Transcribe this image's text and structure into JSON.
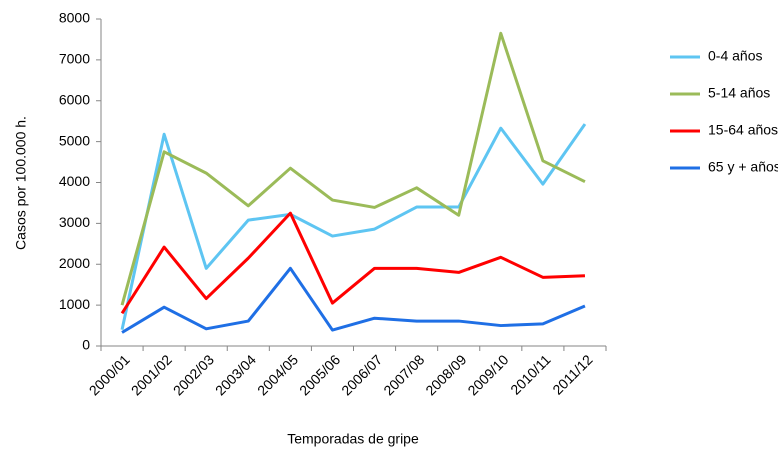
{
  "chart_data": {
    "type": "line",
    "x_label": "Temporadas de gripe",
    "y_label": "Casos por 100.000 h.",
    "categories": [
      "2000/01",
      "2001/02",
      "2002/03",
      "2003/04",
      "2004/05",
      "2005/06",
      "2006/07",
      "2007/08",
      "2008/09",
      "2009/10",
      "2010/11",
      "2011/12"
    ],
    "series": [
      {
        "name": "0-4 años",
        "color": "#5ec5f2",
        "values": [
          400,
          5180,
          1900,
          3080,
          3220,
          2690,
          2860,
          3400,
          3400,
          5330,
          3960,
          5430
        ]
      },
      {
        "name": "5-14 años",
        "color": "#9bbb59",
        "values": [
          1000,
          4750,
          4230,
          3430,
          4350,
          3570,
          3390,
          3870,
          3200,
          7650,
          4530,
          4020
        ]
      },
      {
        "name": "15-64 años",
        "color": "#ff0000",
        "values": [
          800,
          2420,
          1160,
          2150,
          3250,
          1050,
          1900,
          1900,
          1800,
          2170,
          1680,
          1720
        ]
      },
      {
        "name": "65 y + años",
        "color": "#1f6fe5",
        "values": [
          330,
          950,
          420,
          610,
          1900,
          390,
          680,
          610,
          610,
          500,
          540,
          980
        ]
      }
    ],
    "ylim": [
      0,
      8000
    ],
    "yticks": [
      0,
      1000,
      2000,
      3000,
      4000,
      5000,
      6000,
      7000,
      8000
    ],
    "grid": false,
    "legend": "right"
  }
}
